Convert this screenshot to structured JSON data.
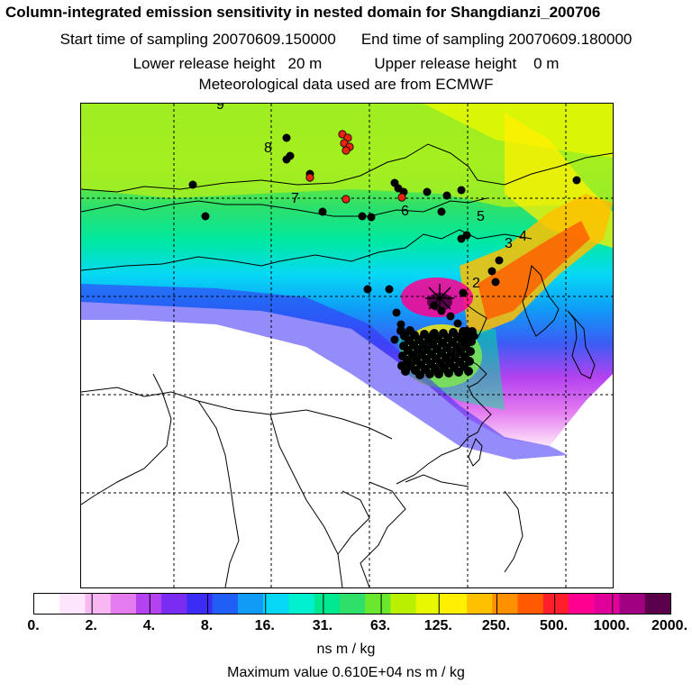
{
  "title": "Column-integrated emission sensitivity in nested domain for Shangdianzi_200706",
  "sampling": {
    "start": "Start time of sampling 20070609.150000",
    "end": "End time of sampling 20070609.180000"
  },
  "release": {
    "lower": "Lower release height   20 m",
    "upper": "Upper release height    0 m"
  },
  "meteo": "Meteorological data used are from ECMWF",
  "map": {
    "trajectory_labels": [
      "2",
      "3",
      "4",
      "5",
      "6",
      "7",
      "8",
      "9"
    ],
    "colors": {
      "background": "#ffffff",
      "coast": "#000000",
      "marker_black": "#000000",
      "marker_red": "#e8230f"
    }
  },
  "colorbar": {
    "ticks": [
      "0.",
      "2.",
      "4.",
      "8.",
      "16.",
      "31.",
      "63.",
      "125.",
      "250.",
      "500.",
      "1000.",
      "2000."
    ],
    "colors": [
      "#ffffff",
      "#fde6fb",
      "#f6b7f3",
      "#e47cf0",
      "#b442f0",
      "#7a2cf0",
      "#3b2df5",
      "#1f5ff6",
      "#0f9cf7",
      "#06d9f5",
      "#00f0d0",
      "#00e890",
      "#2ee06a",
      "#6ae82d",
      "#b8f000",
      "#e8f800",
      "#fff000",
      "#ffc000",
      "#ff9000",
      "#ff5a00",
      "#ff1e2a",
      "#ff0090",
      "#e0009a",
      "#a00080",
      "#5a004a"
    ]
  },
  "unit": "ns m / kg",
  "max_value": "Maximum value  0.610E+04 ns m / kg"
}
